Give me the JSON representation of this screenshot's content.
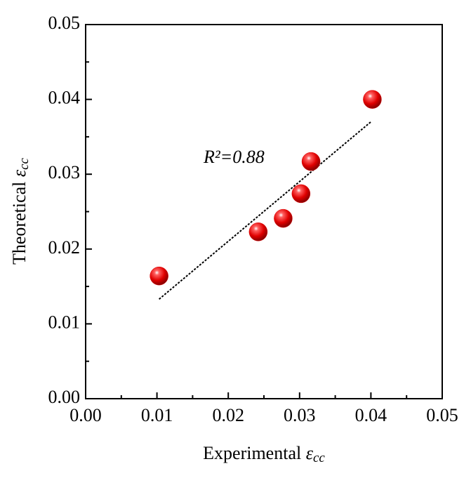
{
  "chart_data": {
    "type": "scatter",
    "x_label": {
      "text": "Experimental",
      "symbol": "ε",
      "subscript": "cc"
    },
    "y_label": {
      "text": "Theoretical",
      "symbol": "ε",
      "subscript": "cc"
    },
    "annotation": "R²=0.88",
    "x": [
      0.0103,
      0.0242,
      0.0277,
      0.0302,
      0.0316,
      0.0402
    ],
    "values": [
      0.0164,
      0.0223,
      0.0241,
      0.0274,
      0.0317,
      0.04
    ],
    "color": "#e00000",
    "trendline": {
      "x": [
        0.0103,
        0.04
      ],
      "y": [
        0.0133,
        0.037
      ],
      "color": "#000000"
    },
    "xlim": [
      0,
      0.05
    ],
    "ylim": [
      0,
      0.05
    ],
    "xticks": [
      {
        "value": 0,
        "label": "0.00"
      },
      0.01,
      0.02,
      0.03,
      0.04,
      0.05
    ],
    "yticks": [
      {
        "value": 0,
        "label": "0.00"
      },
      0.01,
      0.02,
      0.03,
      0.04,
      0.05
    ]
  }
}
